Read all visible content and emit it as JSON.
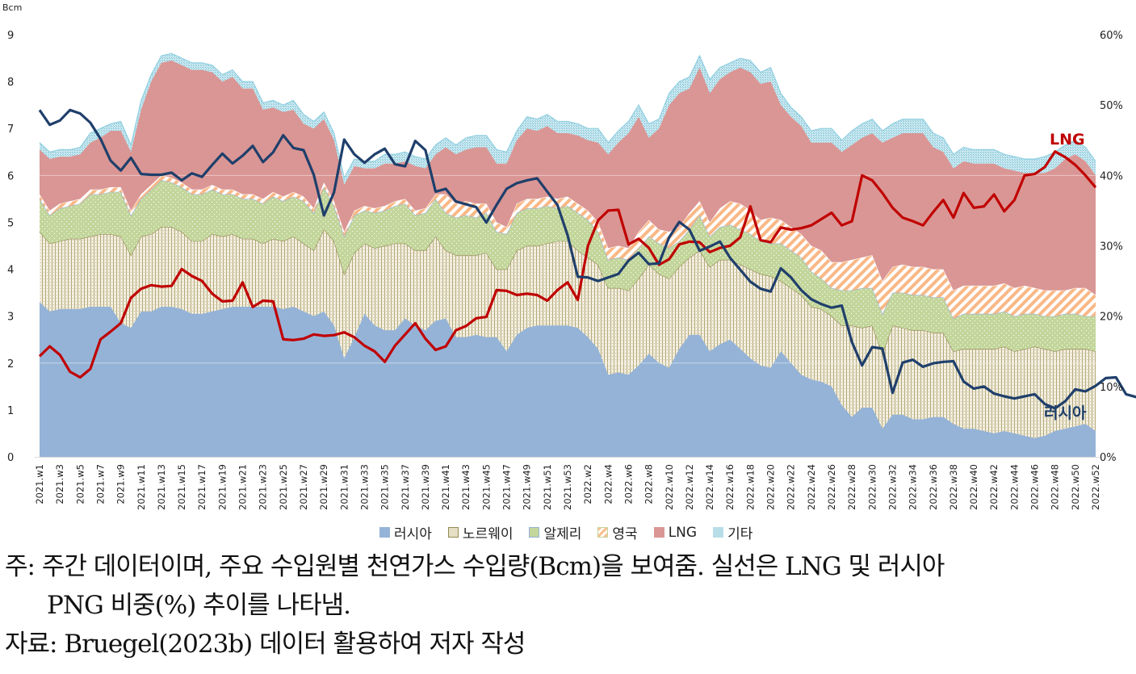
{
  "chart_data": {
    "type": "area",
    "subtype": "stacked area with line overlay (dual axis)",
    "title": "",
    "ylabel": "Bcm",
    "ylabel_right": "",
    "ylim": [
      0,
      9
    ],
    "y_ticks": [
      "0",
      "1",
      "2",
      "3",
      "4",
      "5",
      "6",
      "7",
      "8",
      "9"
    ],
    "y2lim": [
      0,
      60
    ],
    "y2_ticks": [
      "0%",
      "10%",
      "20%",
      "30%",
      "40%",
      "50%",
      "60%"
    ],
    "grid": false,
    "legend_position": "bottom",
    "x_tick_labels": [
      "2021.w1",
      "2021.w3",
      "2021.w5",
      "2021.w7",
      "2021.w9",
      "2021.w11",
      "2021.w13",
      "2021.w15",
      "2021.w17",
      "2021.w19",
      "2021.w21",
      "2021.w23",
      "2021.w25",
      "2021.w27",
      "2021.w29",
      "2021.w31",
      "2021.w33",
      "2021.w35",
      "2021.w37",
      "2021.w39",
      "2021.w41",
      "2021.w43",
      "2021.w45",
      "2021.w47",
      "2021.w49",
      "2021.w51",
      "2021.w53",
      "2022.w2",
      "2022.w4",
      "2022.w6",
      "2022.w8",
      "2022.w10",
      "2022.w12",
      "2022.w14",
      "2022.w16",
      "2022.w18",
      "2022.w20",
      "2022.w22",
      "2022.w24",
      "2022.w26",
      "2022.w28",
      "2022.w30",
      "2022.w32",
      "2022.w34",
      "2022.w36",
      "2022.w38",
      "2022.w40",
      "2022.w42",
      "2022.w44",
      "2022.w46",
      "2022.w48",
      "2022.w50",
      "2022.w52"
    ],
    "x_count": 105,
    "x_first": "2021.w1",
    "x_last": "2022.w52",
    "series": [
      {
        "name": "러시아",
        "kind": "area",
        "axis": "left",
        "color": "#95b3d7",
        "values": [
          3.3,
          3.1,
          3.15,
          3.15,
          3.15,
          3.2,
          3.2,
          3.2,
          2.85,
          2.75,
          3.1,
          3.1,
          3.2,
          3.2,
          3.15,
          3.05,
          3.05,
          3.1,
          3.15,
          3.2,
          3.2,
          3.2,
          3.2,
          3.2,
          3.15,
          3.2,
          3.1,
          3.0,
          3.1,
          2.8,
          2.1,
          2.55,
          3.05,
          2.8,
          2.7,
          2.7,
          2.95,
          2.8,
          2.7,
          2.9,
          2.95,
          2.55,
          2.55,
          2.6,
          2.55,
          2.55,
          2.25,
          2.6,
          2.75,
          2.8,
          2.8,
          2.8,
          2.8,
          2.75,
          2.55,
          2.3,
          1.75,
          1.8,
          1.75,
          1.95,
          2.2,
          2.0,
          1.9,
          2.3,
          2.6,
          2.6,
          2.25,
          2.4,
          2.5,
          2.3,
          2.1,
          1.95,
          1.9,
          2.25,
          2.0,
          1.75,
          1.65,
          1.6,
          1.5,
          1.1,
          0.85,
          1.05,
          1.05,
          0.6,
          0.9,
          0.9,
          0.8,
          0.8,
          0.85,
          0.85,
          0.7,
          0.6,
          0.6,
          0.55,
          0.5,
          0.55,
          0.5,
          0.45,
          0.4,
          0.45,
          0.55,
          0.6,
          0.65,
          0.7,
          0.55
        ]
      },
      {
        "name": "노르웨이",
        "kind": "area",
        "axis": "left",
        "color": "#d9d3b8",
        "pattern": "dotted-vertical",
        "border": "#948a54",
        "values": [
          1.5,
          1.45,
          1.45,
          1.5,
          1.5,
          1.5,
          1.55,
          1.55,
          1.85,
          1.55,
          1.6,
          1.65,
          1.7,
          1.7,
          1.65,
          1.55,
          1.55,
          1.65,
          1.55,
          1.55,
          1.45,
          1.45,
          1.35,
          1.45,
          1.45,
          1.5,
          1.45,
          1.4,
          1.75,
          1.8,
          1.8,
          1.8,
          1.5,
          1.65,
          1.8,
          1.85,
          1.6,
          1.6,
          1.7,
          1.8,
          1.45,
          1.75,
          1.75,
          1.7,
          1.8,
          1.45,
          1.75,
          1.8,
          1.75,
          1.7,
          1.75,
          1.8,
          1.8,
          1.65,
          1.7,
          1.8,
          1.85,
          1.8,
          1.8,
          1.85,
          1.9,
          1.9,
          1.9,
          1.75,
          1.65,
          1.8,
          1.8,
          1.8,
          1.7,
          1.8,
          1.9,
          1.95,
          1.95,
          1.5,
          1.6,
          1.7,
          1.55,
          1.55,
          1.5,
          1.7,
          1.95,
          1.7,
          1.75,
          1.6,
          1.9,
          1.85,
          1.9,
          1.9,
          1.8,
          1.8,
          1.55,
          1.7,
          1.7,
          1.75,
          1.8,
          1.8,
          1.75,
          1.85,
          1.95,
          1.85,
          1.7,
          1.7,
          1.65,
          1.6,
          1.7
        ]
      },
      {
        "name": "알제리",
        "kind": "area",
        "axis": "left",
        "color": "#c3d69b",
        "pattern": "dots",
        "values": [
          0.7,
          0.6,
          0.7,
          0.7,
          0.75,
          0.9,
          0.85,
          0.9,
          0.95,
          0.85,
          0.8,
          0.95,
          1.0,
          0.95,
          0.95,
          1.0,
          1.0,
          0.95,
          0.9,
          0.85,
          0.85,
          0.85,
          0.85,
          0.9,
          0.85,
          0.85,
          0.9,
          0.8,
          0.9,
          0.75,
          0.8,
          0.8,
          0.7,
          0.75,
          0.75,
          0.8,
          0.85,
          0.75,
          0.8,
          0.8,
          0.8,
          0.8,
          0.85,
          0.8,
          0.85,
          0.8,
          0.75,
          0.8,
          0.8,
          0.8,
          0.8,
          0.7,
          0.75,
          0.8,
          0.8,
          0.7,
          0.6,
          0.65,
          0.65,
          0.65,
          0.6,
          0.65,
          0.65,
          0.55,
          0.6,
          0.75,
          0.65,
          0.7,
          0.75,
          0.75,
          0.75,
          0.7,
          0.7,
          0.8,
          0.8,
          0.8,
          0.75,
          0.65,
          0.6,
          0.75,
          0.75,
          0.85,
          0.8,
          0.85,
          0.7,
          0.75,
          0.75,
          0.75,
          0.75,
          0.75,
          0.7,
          0.75,
          0.75,
          0.75,
          0.75,
          0.75,
          0.75,
          0.75,
          0.7,
          0.7,
          0.75,
          0.75,
          0.75,
          0.7,
          0.75
        ]
      },
      {
        "name": "영국",
        "kind": "area",
        "axis": "left",
        "color": "#fac090",
        "pattern": "diagonal-stripes",
        "values": [
          0.1,
          0.1,
          0.1,
          0.1,
          0.1,
          0.1,
          0.1,
          0.1,
          0.1,
          0.1,
          0.1,
          0.1,
          0.1,
          0.1,
          0.1,
          0.1,
          0.1,
          0.1,
          0.1,
          0.1,
          0.1,
          0.1,
          0.1,
          0.1,
          0.1,
          0.1,
          0.1,
          0.1,
          0.1,
          0.1,
          0.1,
          0.1,
          0.1,
          0.1,
          0.1,
          0.1,
          0.1,
          0.1,
          0.1,
          0.1,
          0.4,
          0.3,
          0.3,
          0.3,
          0.2,
          0.2,
          0.15,
          0.2,
          0.2,
          0.2,
          0.2,
          0.2,
          0.2,
          0.2,
          0.2,
          0.2,
          0.25,
          0.25,
          0.25,
          0.35,
          0.35,
          0.3,
          0.35,
          0.3,
          0.35,
          0.3,
          0.3,
          0.4,
          0.5,
          0.55,
          0.5,
          0.45,
          0.55,
          0.5,
          0.5,
          0.5,
          0.55,
          0.6,
          0.55,
          0.6,
          0.65,
          0.65,
          0.7,
          0.7,
          0.55,
          0.6,
          0.6,
          0.6,
          0.6,
          0.6,
          0.6,
          0.6,
          0.6,
          0.6,
          0.6,
          0.6,
          0.6,
          0.6,
          0.55,
          0.55,
          0.55,
          0.5,
          0.55,
          0.6,
          0.45
        ]
      },
      {
        "name": "LNG",
        "kind": "area",
        "axis": "left",
        "color": "#da9694",
        "values": [
          0.95,
          1.1,
          1.0,
          0.95,
          0.95,
          1.0,
          1.1,
          1.2,
          1.2,
          1.25,
          1.8,
          2.2,
          2.4,
          2.5,
          2.5,
          2.55,
          2.55,
          2.4,
          2.3,
          2.4,
          2.25,
          2.25,
          1.9,
          1.8,
          1.8,
          1.75,
          1.55,
          1.7,
          1.35,
          1.3,
          1.0,
          0.95,
          0.8,
          0.85,
          0.9,
          0.8,
          0.8,
          0.95,
          0.85,
          0.85,
          1.0,
          1.05,
          1.1,
          1.2,
          1.2,
          1.25,
          1.35,
          1.35,
          1.5,
          1.45,
          1.5,
          1.4,
          1.35,
          1.45,
          1.5,
          1.7,
          2.0,
          2.2,
          2.45,
          2.45,
          1.75,
          2.15,
          2.7,
          2.85,
          2.65,
          2.85,
          2.75,
          2.75,
          2.75,
          2.9,
          2.95,
          2.9,
          2.9,
          2.45,
          2.35,
          2.3,
          2.2,
          2.3,
          2.55,
          2.35,
          2.45,
          2.55,
          2.6,
          2.95,
          2.75,
          2.8,
          2.85,
          2.85,
          2.6,
          2.5,
          2.6,
          2.65,
          2.6,
          2.6,
          2.6,
          2.45,
          2.5,
          2.4,
          2.45,
          2.5,
          2.6,
          2.8,
          2.85,
          2.7,
          2.55
        ]
      },
      {
        "name": "기타",
        "kind": "area",
        "axis": "left",
        "color": "#b7dee8",
        "pattern": "checker",
        "values": [
          0.15,
          0.15,
          0.15,
          0.15,
          0.15,
          0.2,
          0.2,
          0.15,
          0.2,
          0.15,
          0.2,
          0.15,
          0.15,
          0.15,
          0.15,
          0.15,
          0.15,
          0.15,
          0.15,
          0.15,
          0.15,
          0.15,
          0.15,
          0.15,
          0.15,
          0.2,
          0.2,
          0.15,
          0.15,
          0.15,
          0.15,
          0.15,
          0.15,
          0.15,
          0.2,
          0.2,
          0.2,
          0.2,
          0.2,
          0.2,
          0.2,
          0.2,
          0.25,
          0.25,
          0.25,
          0.3,
          0.25,
          0.2,
          0.25,
          0.25,
          0.25,
          0.25,
          0.25,
          0.25,
          0.25,
          0.3,
          0.25,
          0.25,
          0.25,
          0.25,
          0.3,
          0.2,
          0.25,
          0.25,
          0.25,
          0.25,
          0.3,
          0.25,
          0.2,
          0.2,
          0.25,
          0.25,
          0.3,
          0.25,
          0.2,
          0.2,
          0.25,
          0.3,
          0.3,
          0.25,
          0.3,
          0.3,
          0.3,
          0.25,
          0.3,
          0.3,
          0.3,
          0.3,
          0.3,
          0.3,
          0.3,
          0.3,
          0.3,
          0.3,
          0.3,
          0.3,
          0.3,
          0.3,
          0.3,
          0.35,
          0.35,
          0.3,
          0.3,
          0.3,
          0.3
        ]
      },
      {
        "name": "LNG 비중",
        "kind": "line",
        "axis": "right",
        "color": "#c00000",
        "unit": "%",
        "values": [
          14.3,
          15.7,
          14.5,
          12.1,
          11.3,
          12.5,
          16.7,
          17.8,
          19.0,
          22.6,
          23.9,
          24.4,
          24.2,
          24.3,
          26.7,
          25.7,
          25.0,
          23.2,
          22.1,
          22.2,
          24.8,
          21.3,
          22.2,
          22.1,
          16.7,
          16.6,
          16.8,
          17.4,
          17.2,
          17.3,
          17.7,
          17.0,
          15.8,
          15.0,
          13.5,
          15.8,
          17.4,
          19.0,
          16.8,
          15.2,
          15.7,
          18.0,
          18.6,
          19.7,
          19.9,
          23.7,
          23.6,
          23.0,
          23.2,
          23.0,
          22.2,
          23.7,
          24.8,
          22.3,
          30.0,
          33.6,
          35.0,
          35.1,
          30.2,
          31.0,
          29.7,
          27.3,
          28.1,
          30.2,
          30.6,
          30.5,
          29.1,
          29.7,
          30.0,
          31.2,
          35.6,
          30.8,
          30.5,
          32.6,
          32.3,
          32.5,
          32.9,
          33.8,
          34.7,
          32.9,
          33.5,
          40.0,
          39.3,
          37.5,
          35.4,
          34.0,
          33.5,
          32.9,
          34.8,
          36.5,
          34.0,
          37.5,
          35.4,
          35.6,
          37.3,
          34.9,
          36.5,
          40.0,
          40.2,
          41.2,
          43.4,
          42.6,
          41.5,
          40.0,
          38.3
        ]
      },
      {
        "name": "러시아 PNG 비중",
        "kind": "line",
        "axis": "right",
        "color": "#1f3f6b",
        "unit": "%",
        "values": [
          49.3,
          47.2,
          47.8,
          49.3,
          48.8,
          47.5,
          45.2,
          42.1,
          40.7,
          42.5,
          40.2,
          40.1,
          40.1,
          40.4,
          39.3,
          40.3,
          39.8,
          41.5,
          43.1,
          41.7,
          42.8,
          44.2,
          41.9,
          43.3,
          45.7,
          43.9,
          43.6,
          40.1,
          34.3,
          37.6,
          45.1,
          43.0,
          41.8,
          43.0,
          43.8,
          41.6,
          41.3,
          44.9,
          43.6,
          37.7,
          38.1,
          36.3,
          35.9,
          35.5,
          33.3,
          35.8,
          38.1,
          38.9,
          39.3,
          39.6,
          37.7,
          35.8,
          31.5,
          25.6,
          25.5,
          25.0,
          25.5,
          26.0,
          27.9,
          29.0,
          27.4,
          27.5,
          31.2,
          33.4,
          32.3,
          29.3,
          29.9,
          30.6,
          28.3,
          26.6,
          24.9,
          23.9,
          23.5,
          26.8,
          25.5,
          23.7,
          22.4,
          21.7,
          21.2,
          21.5,
          16.3,
          13.0,
          15.6,
          15.4,
          9.1,
          13.4,
          13.8,
          12.8,
          13.3,
          13.5,
          13.6,
          10.7,
          9.7,
          10.0,
          9.0,
          8.6,
          8.3,
          8.6,
          8.9,
          7.5,
          6.9,
          7.9,
          9.6,
          9.3,
          10.1,
          11.2,
          11.3,
          8.9,
          8.5
        ]
      }
    ],
    "annotations": [
      {
        "text": "LNG",
        "color": "#c00000",
        "near": "2022.w46",
        "value_pct": 45
      },
      {
        "text": "러시아",
        "color": "#1f3f6b",
        "near": "2022.w49",
        "value_pct": 6
      }
    ]
  },
  "axis": {
    "left_unit": "Bcm",
    "left_ticks": [
      "0",
      "1",
      "2",
      "3",
      "4",
      "5",
      "6",
      "7",
      "8",
      "9"
    ],
    "right_ticks": [
      "0%",
      "10%",
      "20%",
      "30%",
      "40%",
      "50%",
      "60%"
    ]
  },
  "legend": {
    "items": [
      {
        "label": "러시아",
        "color": "#95b3d7"
      },
      {
        "label": "노르웨이",
        "color": "#c8bc8f"
      },
      {
        "label": "알제리",
        "color": "#c3d69b"
      },
      {
        "label": "영국",
        "color": "#fac090"
      },
      {
        "label": "LNG",
        "color": "#da9694"
      },
      {
        "label": "기타",
        "color": "#b7dee8"
      }
    ]
  },
  "labels": {
    "lng": "LNG",
    "russia": "러시아"
  },
  "notes": {
    "line1": "주: 주간 데이터이며, 주요 수입원별 천연가스 수입량(Bcm)을 보여줌. 실선은 LNG 및 러시아",
    "line2": "PNG 비중(%) 추이를 나타냄.",
    "line3": "자료: Bruegel(2023b) 데이터 활용하여 저자 작성"
  }
}
